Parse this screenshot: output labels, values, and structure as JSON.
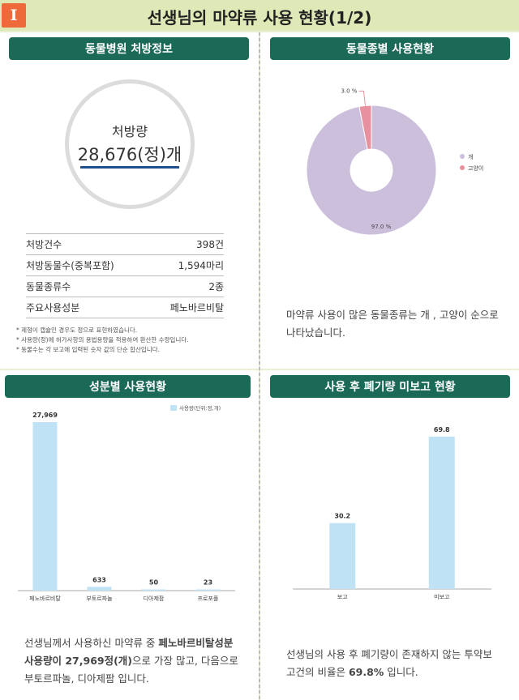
{
  "header": {
    "badge": "I",
    "title": "선생님의 마약류 사용 현황(1/2)"
  },
  "panel1": {
    "tab": "동물병원 처방정보",
    "circle_label": "처방량",
    "circle_value": "28,676(정)개",
    "stats": [
      {
        "label": "처방건수",
        "value": "398건"
      },
      {
        "label": "처방동물수(중복포함)",
        "value": "1,594마리"
      },
      {
        "label": "동물종류수",
        "value": "2종"
      },
      {
        "label": "주요사용성분",
        "value": "페노바르비탈"
      }
    ],
    "notes": [
      "* 제형이 캡슐인 경우도 정으로 표현하였습니다.",
      "* 사용량(정)에 허가사항의 용법용량을 적용하여 환산한 수량입니다.",
      "* 동물수는 각 보고에 입력된 숫자 값의 단순 합산입니다."
    ]
  },
  "panel2": {
    "tab": "동물종별 사용현황",
    "description": "마약류 사용이 많은 동물종류는 개 , 고양이 순으로 나타났습니다."
  },
  "panel3": {
    "tab": "성분별 사용현황",
    "description_parts": {
      "pre": "선생님께서 사용하신 마약류 중 ",
      "bold": "페노바르비탈성분 사용량이 27,969정(개)",
      "post": "으로 가장 많고, 다음으로 부토르파놀, 디아제팜 입니다."
    }
  },
  "panel4": {
    "tab": "사용 후 폐기량 미보고 현황",
    "description_parts": {
      "pre": "선생님의 사용 후 폐기량이 존재하지 않는 투약보고건의 비율은 ",
      "bold": "69.8%",
      "post": " 입니다."
    }
  },
  "chart_data": [
    {
      "type": "pie",
      "labels": [
        "개",
        "고양이"
      ],
      "values": [
        97.0,
        3.0
      ],
      "data_labels": [
        "97.0 %",
        "3.0 %"
      ],
      "colors": [
        "#cbbfdc",
        "#e8919e"
      ],
      "legend": "right"
    },
    {
      "type": "bar",
      "categories": [
        "페노바르비탈",
        "부토르파놀",
        "디아제팜",
        "프로포폴"
      ],
      "values": [
        27969,
        633,
        50,
        23
      ],
      "data_labels": [
        "27,969",
        "633",
        "50",
        "23"
      ],
      "series": [
        {
          "name": "사용량(단위:정,개)",
          "values": [
            27969,
            633,
            50,
            23
          ]
        }
      ],
      "color": "#bfe3f5",
      "legend": "top-right",
      "ylim": [
        0,
        27969
      ]
    },
    {
      "type": "bar",
      "categories": [
        "보고",
        "미보고"
      ],
      "values": [
        30.2,
        69.8
      ],
      "data_labels": [
        "30.2",
        "69.8"
      ],
      "color": "#bfe3f5",
      "ylim": [
        0,
        69.8
      ]
    }
  ]
}
